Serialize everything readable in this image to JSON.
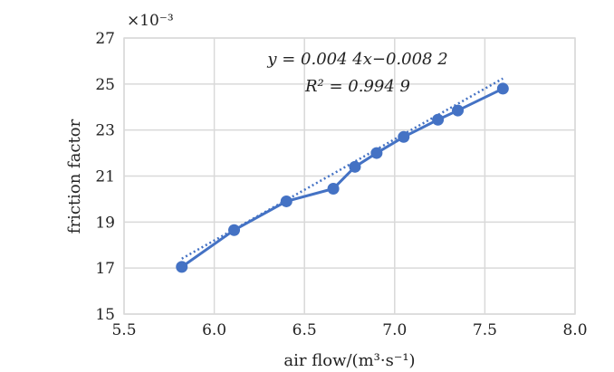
{
  "chart_data": {
    "type": "scatter",
    "xlabel": "air flow/(m³·s⁻¹)",
    "ylabel": "friction factor",
    "y_multiplier": "×10⁻³",
    "xlim": [
      5.5,
      8.0
    ],
    "ylim": [
      15,
      27
    ],
    "x_ticks": [
      "5.5",
      "6.0",
      "6.5",
      "7.0",
      "7.5",
      "8.0"
    ],
    "y_ticks": [
      "15",
      "17",
      "19",
      "21",
      "23",
      "25",
      "27"
    ],
    "grid": true,
    "series": [
      {
        "color": "#4472c4",
        "markers": true,
        "line": "solid",
        "x": [
          5.82,
          6.11,
          6.4,
          6.66,
          6.78,
          6.9,
          7.05,
          7.24,
          7.35,
          7.6
        ],
        "y": [
          17.05,
          18.65,
          19.9,
          20.45,
          21.4,
          22.0,
          22.7,
          23.45,
          23.85,
          24.8
        ]
      }
    ],
    "trendline": {
      "style": "dotted",
      "color": "#4472c4",
      "slope": 0.0044,
      "intercept": -0.0082,
      "equation": "y = 0.004 4x−0.008 2",
      "r_squared": "R² = 0.994 9"
    }
  }
}
